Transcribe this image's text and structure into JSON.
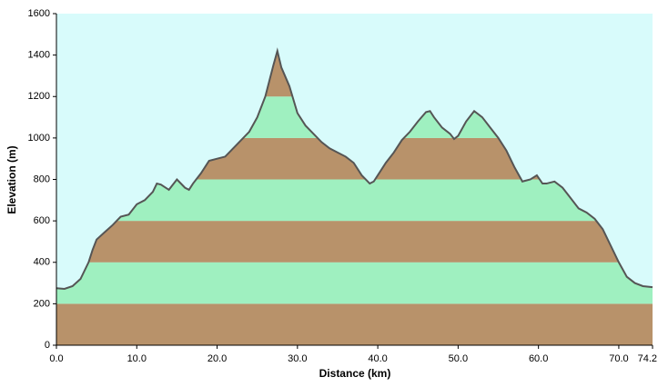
{
  "chart_data": {
    "type": "area",
    "xlabel": "Distance   (km)",
    "ylabel": "Elevation (m)",
    "x": [
      0,
      1,
      2,
      3,
      4,
      4.5,
      5,
      6,
      7,
      8,
      9,
      10,
      11,
      12,
      12.5,
      13,
      14,
      15,
      16,
      16.5,
      17,
      18,
      19,
      20,
      21,
      22,
      23,
      24,
      25,
      26,
      27,
      27.5,
      28,
      29,
      30,
      31,
      32,
      33,
      34,
      35,
      36,
      37,
      38,
      39,
      39.5,
      40,
      41,
      42,
      43,
      44,
      45,
      46,
      46.5,
      47,
      48,
      49,
      49.5,
      50,
      51,
      52,
      53,
      54,
      55,
      56,
      57,
      58,
      59,
      59.8,
      60.5,
      61,
      62,
      63,
      64,
      65,
      66,
      67,
      68,
      69,
      70,
      71,
      72,
      73,
      74.2
    ],
    "values": [
      275,
      272,
      285,
      320,
      400,
      460,
      510,
      545,
      580,
      620,
      630,
      680,
      700,
      740,
      780,
      775,
      750,
      800,
      760,
      750,
      780,
      830,
      890,
      900,
      910,
      950,
      990,
      1030,
      1100,
      1200,
      1350,
      1420,
      1340,
      1250,
      1120,
      1060,
      1020,
      980,
      950,
      930,
      910,
      880,
      820,
      780,
      790,
      820,
      880,
      930,
      990,
      1030,
      1080,
      1125,
      1130,
      1100,
      1050,
      1020,
      995,
      1010,
      1080,
      1130,
      1100,
      1050,
      1000,
      940,
      860,
      790,
      800,
      820,
      780,
      780,
      790,
      760,
      710,
      660,
      640,
      610,
      560,
      480,
      400,
      330,
      300,
      285,
      280
    ],
    "xlim": [
      0,
      74.2
    ],
    "ylim": [
      0,
      1600
    ],
    "xticks": [
      {
        "value": 0,
        "label": "0.0"
      },
      {
        "value": 10,
        "label": "10.0"
      },
      {
        "value": 20,
        "label": "20.0"
      },
      {
        "value": 30,
        "label": "30.0"
      },
      {
        "value": 40,
        "label": "40.0"
      },
      {
        "value": 50,
        "label": "50.0"
      },
      {
        "value": 60,
        "label": "60.0"
      },
      {
        "value": 70,
        "label": "70.0"
      },
      74.2
    ],
    "yticks": [
      0,
      200,
      400,
      600,
      800,
      1000,
      1200,
      1400,
      1600
    ],
    "band_colors": [
      "#b8926a",
      "#9ff0c0"
    ],
    "line_color": "#555555",
    "background": "#d8fbfb"
  }
}
